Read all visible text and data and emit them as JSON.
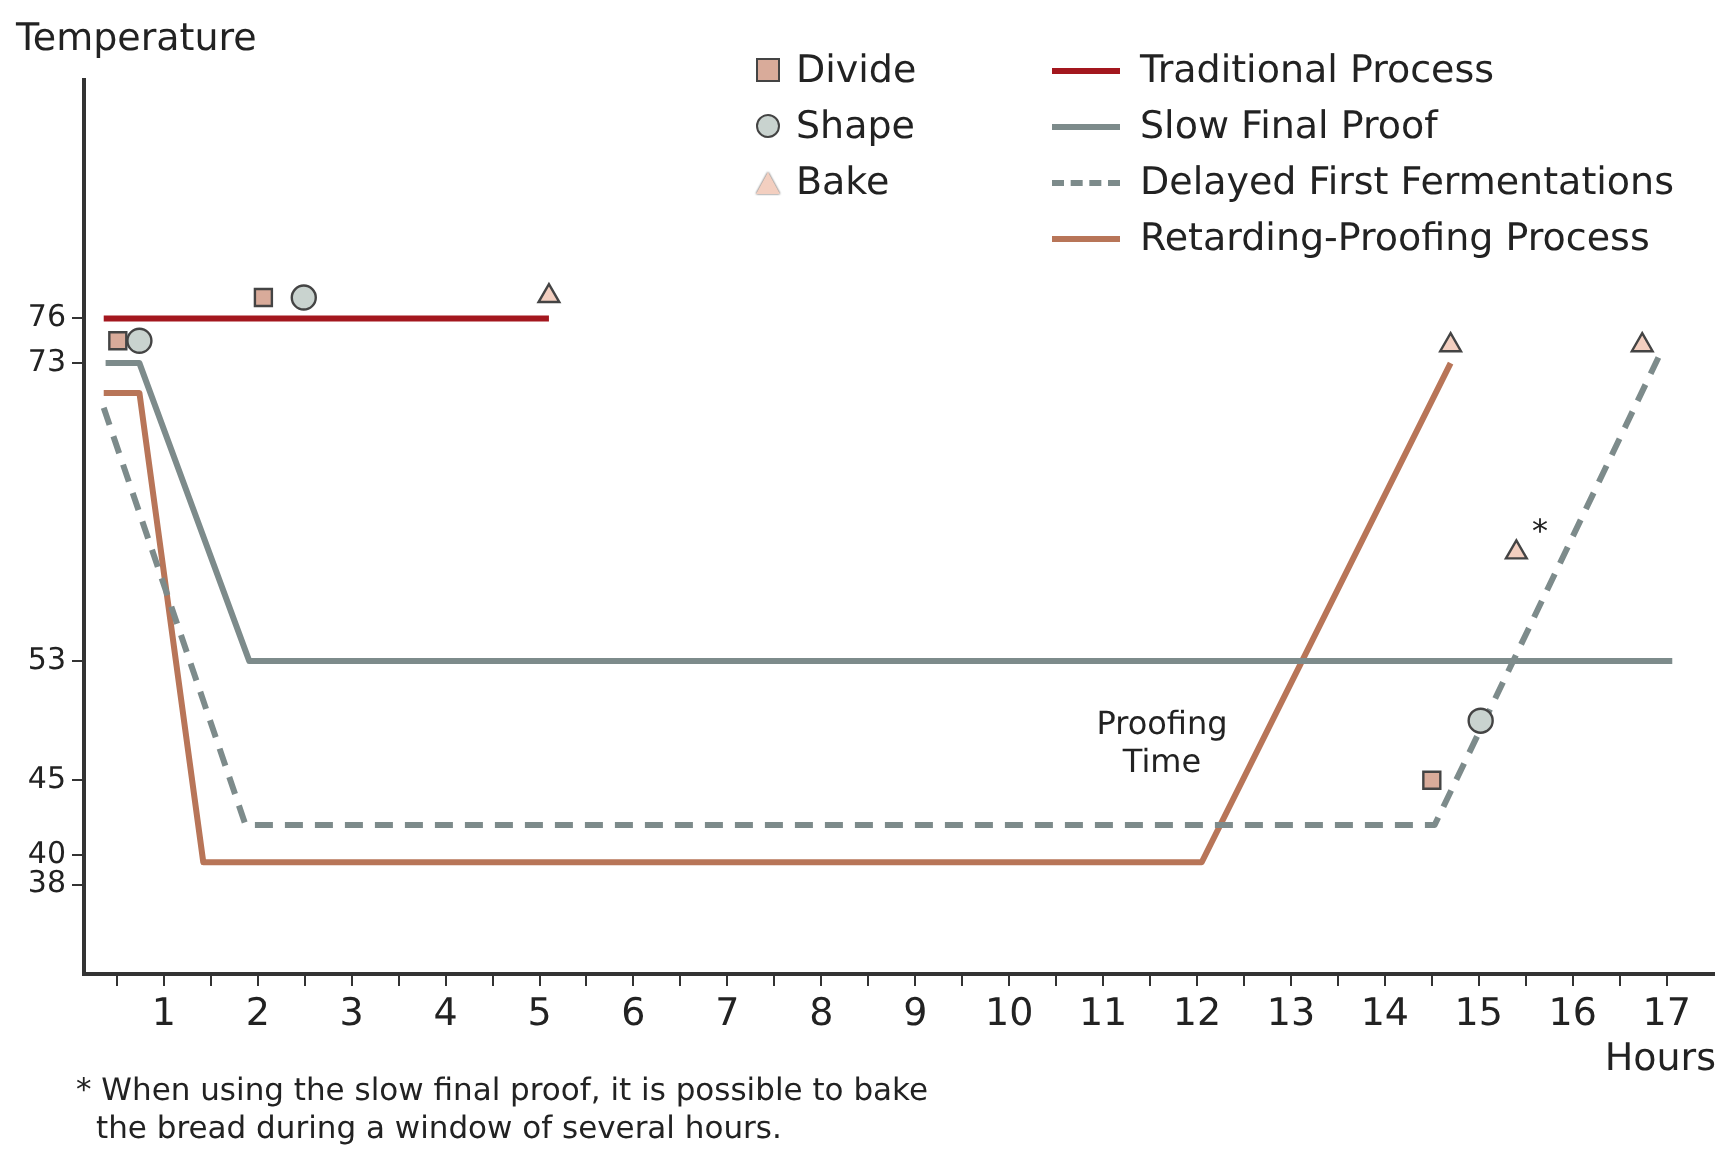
{
  "chart_data": {
    "type": "line",
    "xlabel": "Hours",
    "ylabel": "Temperature",
    "xlim": [
      0.15,
      17.5
    ],
    "xticks": [
      {
        "value": 0.5,
        "label": null
      },
      1,
      {
        "value": 1.5,
        "label": null
      },
      2,
      {
        "value": 2.5,
        "label": null
      },
      3,
      {
        "value": 3.5,
        "label": null
      },
      4,
      {
        "value": 4.5,
        "label": null
      },
      5,
      {
        "value": 5.5,
        "label": null
      },
      6,
      {
        "value": 6.5,
        "label": null
      },
      7,
      {
        "value": 7.5,
        "label": null
      },
      8,
      {
        "value": 8.5,
        "label": null
      },
      9,
      {
        "value": 9.5,
        "label": null
      },
      10,
      {
        "value": 10.5,
        "label": null
      },
      11,
      {
        "value": 11.5,
        "label": null
      },
      12,
      {
        "value": 12.5,
        "label": null
      },
      13,
      {
        "value": 13.5,
        "label": null
      },
      14,
      {
        "value": 14.5,
        "label": null
      },
      15,
      {
        "value": 15.5,
        "label": null
      },
      16,
      {
        "value": 16.5,
        "label": null
      },
      17
    ],
    "ylim": [
      32,
      92
    ],
    "yticks": [
      38,
      40,
      45,
      53,
      73,
      76
    ],
    "grid": false,
    "legend": "top right",
    "series": [
      {
        "name": "Divide",
        "type": "scatter",
        "marker": "square",
        "color": "#d9ab9a",
        "x": [
          0.51,
          2.06,
          14.5
        ],
        "values": [
          74.5,
          77.4,
          45
        ]
      },
      {
        "name": "Shape",
        "type": "scatter",
        "marker": "circle",
        "color": "#c9d3cf",
        "x": [
          0.74,
          2.49,
          15.02
        ],
        "values": [
          74.5,
          77.4,
          49
        ]
      },
      {
        "name": "Bake",
        "type": "scatter",
        "marker": "triangle",
        "color": "#f3cfc0",
        "x": [
          5.1,
          14.7,
          15.4,
          16.74
        ],
        "values": [
          77.5,
          74.2,
          60.3,
          74.2
        ]
      },
      {
        "name": "Traditional Process",
        "type": "line",
        "marker": "none",
        "line_style": "solid",
        "color": "#a3171e",
        "x": [
          0.36,
          5.1
        ],
        "values": [
          76,
          76
        ]
      },
      {
        "name": "Slow Final Proof",
        "type": "line",
        "marker": "none",
        "line_style": "solid",
        "color": "#7d8b8b",
        "x": [
          0.38,
          0.74,
          1.91,
          17.06
        ],
        "values": [
          73,
          73,
          53,
          53
        ]
      },
      {
        "name": "Delayed First Fermentations",
        "type": "line",
        "marker": "none",
        "line_style": "dashed",
        "color": "#7d8b8b",
        "x": [
          0.36,
          1.87,
          14.53,
          16.96
        ],
        "values": [
          70,
          42,
          42,
          74
        ]
      },
      {
        "name": "Retarding-Proofing Process",
        "type": "line",
        "marker": "none",
        "line_style": "solid",
        "color": "#b87558",
        "x": [
          0.36,
          0.74,
          1.42,
          12.05,
          14.7
        ],
        "values": [
          71,
          71,
          39.5,
          39.5,
          73
        ]
      }
    ],
    "annotations": [
      "Proofing Time",
      "*",
      "* When using the slow final proof, it is possible to bake the bread during a window of several hours."
    ]
  }
}
